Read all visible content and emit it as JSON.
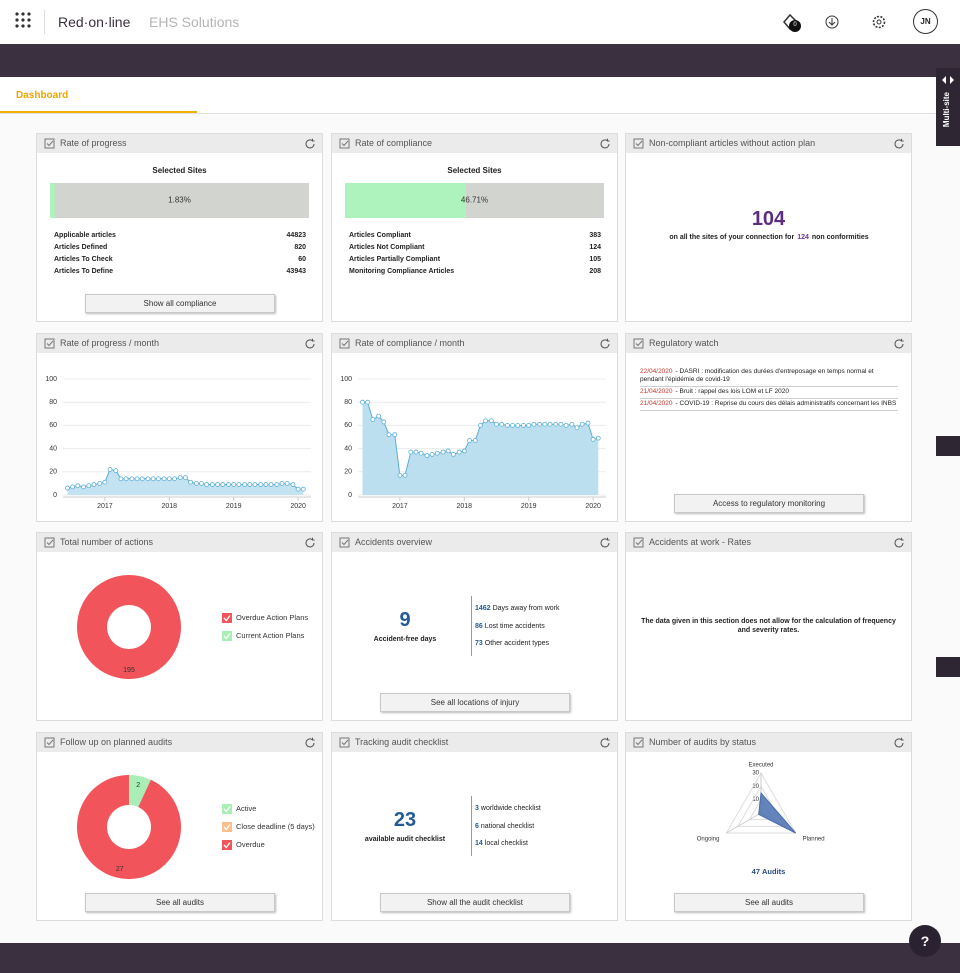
{
  "header": {
    "brand": "Red·on·line",
    "product": "EHS Solutions",
    "notification_count": 0,
    "user_initials": "JN"
  },
  "tab": "Dashboard",
  "side_tab": "Multi-site",
  "help": "?",
  "cards": [
    {
      "title": "Rate of progress",
      "chart_data": {
        "type": "progress",
        "subtitle": "Selected Sites",
        "value": 1.83,
        "value_label": "1.83%",
        "xlim": [
          0,
          100
        ],
        "color": "#aef2bd",
        "track_color": "#d2d4d0"
      },
      "stats": [
        {
          "label": "Applicable articles",
          "value": 44823
        },
        {
          "label": "Articles Defined",
          "value": 820
        },
        {
          "label": "Articles To Check",
          "value": 60
        },
        {
          "label": "Articles To Define",
          "value": 43943
        }
      ],
      "button": "Show all compliance"
    },
    {
      "title": "Rate of compliance",
      "chart_data": {
        "type": "progress",
        "subtitle": "Selected Sites",
        "value": 46.71,
        "value_label": "46.71%",
        "xlim": [
          0,
          100
        ],
        "color": "#aef2bd",
        "track_color": "#d2d4d0"
      },
      "stats": [
        {
          "label": "Articles Compliant",
          "value": 383
        },
        {
          "label": "Articles Not Compliant",
          "value": 124
        },
        {
          "label": "Articles Partially Compliant",
          "value": 105
        },
        {
          "label": "Monitoring Compliance Articles",
          "value": 208
        }
      ]
    },
    {
      "title": "Non-compliant articles without action plan",
      "figure": {
        "value": 104,
        "text": "on all the sites of your connection for",
        "count": 124,
        "text_end": "non conformities"
      }
    },
    {
      "title": "Rate of progress / month",
      "chart_data": {
        "type": "line",
        "x": [
          2016.42,
          2016.5,
          2016.58,
          2016.67,
          2016.75,
          2016.83,
          2016.92,
          2017,
          2017.08,
          2017.17,
          2017.25,
          2017.33,
          2017.42,
          2017.5,
          2017.58,
          2017.67,
          2017.75,
          2017.83,
          2017.92,
          2018,
          2018.08,
          2018.17,
          2018.25,
          2018.33,
          2018.42,
          2018.5,
          2018.58,
          2018.67,
          2018.75,
          2018.83,
          2018.92,
          2019,
          2019.08,
          2019.17,
          2019.25,
          2019.33,
          2019.42,
          2019.5,
          2019.58,
          2019.67,
          2019.75,
          2019.83,
          2019.92,
          2020,
          2020.08
        ],
        "values": [
          6,
          7,
          8,
          7,
          8,
          9,
          10,
          11,
          22,
          21,
          14,
          14,
          14,
          14,
          14,
          14,
          14,
          14,
          14,
          14,
          14,
          15,
          15,
          11,
          10,
          10,
          9,
          9,
          9,
          9,
          9,
          9,
          9,
          9,
          9,
          9,
          9,
          9,
          9,
          9,
          10,
          10,
          9,
          5,
          5
        ],
        "xlim": [
          2016.35,
          2020.2
        ],
        "ylim": [
          0,
          100
        ],
        "xticks": [
          2017,
          2018,
          2019,
          2020
        ],
        "yticks": [
          0,
          20,
          40,
          60,
          80,
          100
        ],
        "color": "#5aaed8",
        "fill": "#c3e2f2",
        "grid": true
      }
    },
    {
      "title": "Rate of compliance / month",
      "chart_data": {
        "type": "line",
        "x": [
          2016.42,
          2016.5,
          2016.58,
          2016.67,
          2016.75,
          2016.83,
          2016.92,
          2017,
          2017.08,
          2017.17,
          2017.25,
          2017.33,
          2017.42,
          2017.5,
          2017.58,
          2017.67,
          2017.75,
          2017.83,
          2017.92,
          2018,
          2018.08,
          2018.17,
          2018.25,
          2018.33,
          2018.42,
          2018.5,
          2018.58,
          2018.67,
          2018.75,
          2018.83,
          2018.92,
          2019,
          2019.08,
          2019.17,
          2019.25,
          2019.33,
          2019.42,
          2019.5,
          2019.58,
          2019.67,
          2019.75,
          2019.83,
          2019.92,
          2020,
          2020.08
        ],
        "values": [
          80,
          80,
          65,
          68,
          63,
          52,
          52,
          17,
          17,
          37,
          37,
          36,
          34,
          35,
          36,
          37,
          38,
          35,
          37,
          38,
          47,
          47,
          60,
          64,
          64,
          61,
          61,
          60,
          60,
          60,
          60,
          60,
          61,
          61,
          61,
          61,
          61,
          61,
          60,
          61,
          58,
          61,
          62,
          48,
          49
        ],
        "xlim": [
          2016.35,
          2020.2
        ],
        "ylim": [
          0,
          100
        ],
        "xticks": [
          2017,
          2018,
          2019,
          2020
        ],
        "yticks": [
          0,
          20,
          40,
          60,
          80,
          100
        ],
        "color": "#5aaed8",
        "fill": "#bcdff0",
        "grid": true
      }
    },
    {
      "title": "Regulatory watch",
      "news": [
        {
          "date": "22/04/2020",
          "text": "- DASRI : modification des durées d'entreposage en temps normal et pendant l'épidémie de covid-19"
        },
        {
          "date": "21/04/2020",
          "text": "- Bruit : rappel des lois LOM et LF 2020"
        },
        {
          "date": "21/04/2020",
          "text": "- COVID-19 : Reprise du cours des délais administratifs concernant les INBS"
        }
      ],
      "button": "Access to regulatory monitoring"
    },
    {
      "title": "Total number of actions",
      "chart_data": {
        "type": "donut",
        "categories": [
          "Overdue Action Plans",
          "Current Action Plans"
        ],
        "values": [
          195,
          0
        ],
        "colors": [
          "#f2545b",
          "#a9efb5"
        ]
      }
    },
    {
      "title": "Accidents overview",
      "summary": {
        "value": 9,
        "caption": "Accident-free days",
        "items": [
          {
            "value": 1462,
            "label": "Days away from work"
          },
          {
            "value": 86,
            "label": "Lost time accidents"
          },
          {
            "value": 73,
            "label": "Other accident types"
          }
        ]
      },
      "button": "See all locations of injury"
    },
    {
      "title": "Accidents at work - Rates",
      "message": "The data given in this section does not allow for the calculation of frequency and severity rates."
    },
    {
      "title": "Follow up on planned audits",
      "chart_data": {
        "type": "donut",
        "categories": [
          "Active",
          "Close deadline (5 days)",
          "Overdue"
        ],
        "values": [
          2,
          0,
          27
        ],
        "colors": [
          "#a9efb5",
          "#f7c08e",
          "#f2545b"
        ]
      },
      "button": "See all audits"
    },
    {
      "title": "Tracking audit checklist",
      "summary": {
        "value": 23,
        "caption": "available audit checklist",
        "items": [
          {
            "value": 3,
            "label": "worldwide checklist"
          },
          {
            "value": 6,
            "label": "national checklist"
          },
          {
            "value": 14,
            "label": "local checklist"
          }
        ]
      },
      "button": "Show all the audit checklist"
    },
    {
      "title": "Number of audits by status",
      "chart_data": {
        "type": "radar",
        "categories": [
          "Executed",
          "Planned",
          "Ongoing"
        ],
        "values": [
          15,
          30,
          2
        ],
        "rlim": [
          0,
          30
        ],
        "rticks": [
          10,
          20,
          30
        ],
        "color": "#4a6fb0"
      },
      "total": {
        "value": 47,
        "label": "Audits"
      },
      "button": "See all audits"
    }
  ]
}
